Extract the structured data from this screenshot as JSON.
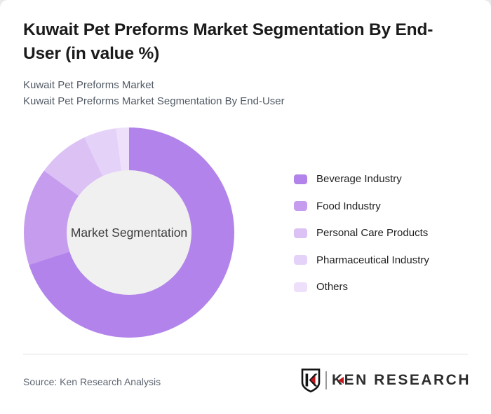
{
  "header": {
    "title": "Kuwait Pet Preforms Market Segmentation By End-User (in value %)",
    "subtitle_line1": "Kuwait Pet Preforms Market",
    "subtitle_line2": "Kuwait Pet Preforms Market Segmentation By End-User"
  },
  "chart_data": {
    "type": "pie",
    "subtype": "donut",
    "title": "Kuwait Pet Preforms Market Segmentation By End-User (in value %)",
    "unit": "%",
    "center_label": "Market Segmentation",
    "categories": [
      "Beverage Industry",
      "Food Industry",
      "Personal Care Products",
      "Pharmaceutical Industry",
      "Others"
    ],
    "values": [
      70,
      15,
      8,
      5,
      2
    ],
    "colors": [
      "#b283ea",
      "#c69cef",
      "#dcc1f5",
      "#e5d2f8",
      "#eedffb"
    ],
    "hole_color": "#f0f0f0",
    "start_angle_deg": 0,
    "direction": "clockwise",
    "legend_position": "right",
    "data_labels_shown": false
  },
  "footer": {
    "source": "Source: Ken Research Analysis",
    "logo": {
      "k": "K",
      "rest": "EN RESEARCH",
      "accent_color": "#c4161c"
    }
  }
}
